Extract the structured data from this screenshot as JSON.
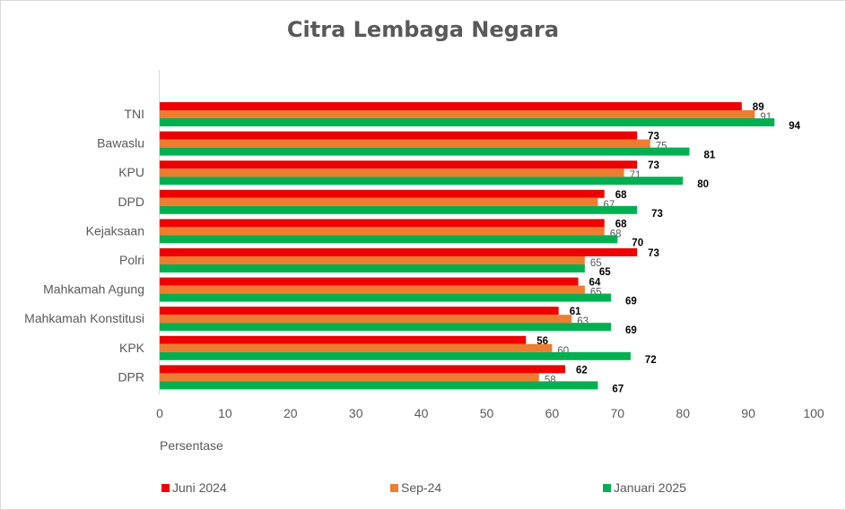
{
  "chart_data": {
    "type": "bar",
    "orientation": "horizontal",
    "title": "Citra Lembaga Negara",
    "xlabel": "Persentase",
    "ylabel": "",
    "xlim": [
      0,
      100
    ],
    "x_ticks": [
      "0",
      "10",
      "20",
      "30",
      "40",
      "50",
      "60",
      "70",
      "80",
      "90",
      "100"
    ],
    "grid": false,
    "legend_position": "bottom",
    "categories": [
      "TNI",
      "Bawaslu",
      "KPU",
      "DPD",
      "Kejaksaan",
      "Polri",
      "Mahkamah Agung",
      "Mahkamah Konstitusi",
      "KPK",
      "DPR"
    ],
    "series": [
      {
        "name": "Juni 2024",
        "color": "#ee0000",
        "values": [
          89,
          73,
          73,
          68,
          68,
          73,
          64,
          61,
          56,
          62
        ]
      },
      {
        "name": "Sep-24",
        "color": "#ed7d31",
        "values": [
          91,
          75,
          71,
          67,
          68,
          65,
          65,
          63,
          60,
          58
        ]
      },
      {
        "name": "Januari 2025",
        "color": "#00b050",
        "values": [
          94,
          81,
          80,
          73,
          70,
          65,
          69,
          69,
          72,
          67
        ]
      }
    ]
  }
}
